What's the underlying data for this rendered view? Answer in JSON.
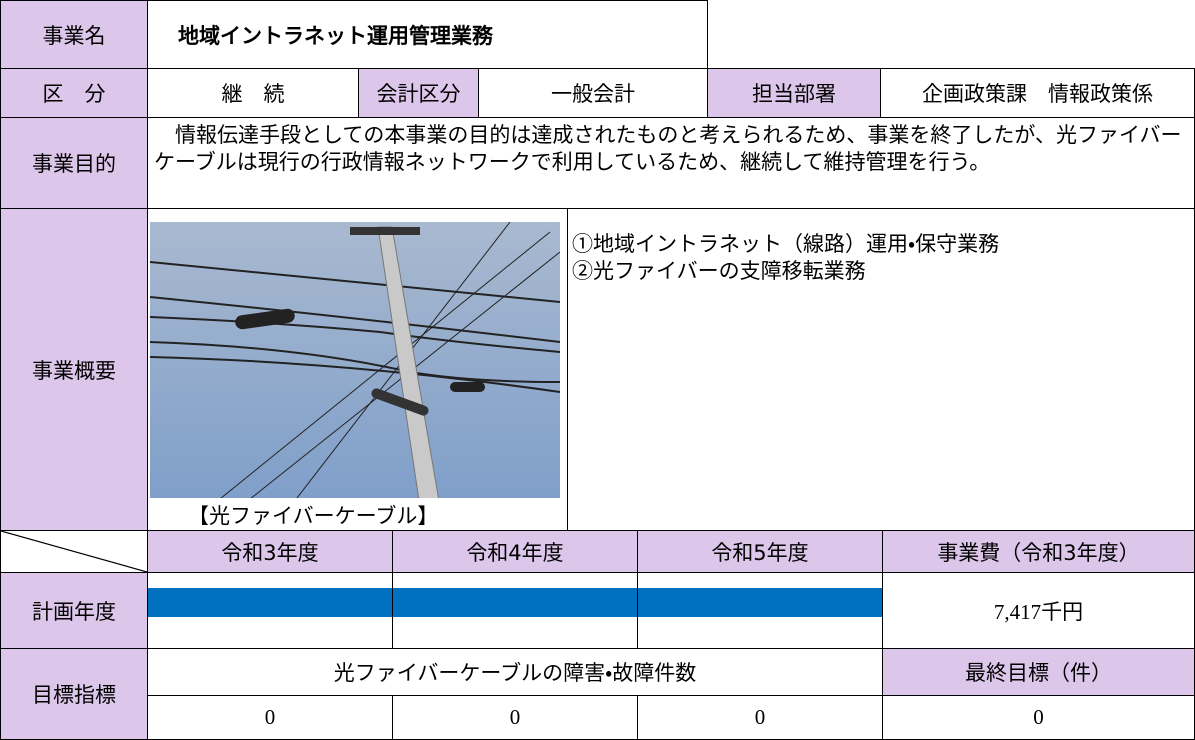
{
  "header": {
    "name_label": "事業名",
    "name": "地域イントラネット運用管理業務"
  },
  "info": {
    "category_label": "区　分",
    "category": "継　続",
    "account_label": "会計区分",
    "account": "一般会計",
    "department_label": "担当部署",
    "department": "企画政策課　情報政策係"
  },
  "purpose": {
    "label": "事業目的",
    "text": "情報伝達手段としての本事業の目的は達成されたものと考えられるため、事業を終了したが、光ファイバーケーブルは現行の行政情報ネットワークで利用しているため、継続して維持管理を行う。"
  },
  "overview": {
    "label": "事業概要",
    "caption": "【光ファイバーケーブル】",
    "items": [
      "①地域イントラネット（線路）運用・保守業務",
      "②光ファイバーの支障移転業務"
    ]
  },
  "schedule": {
    "years": [
      "令和3年度",
      "令和4年度",
      "令和5年度"
    ],
    "cost_label": "事業費（令和3年度）",
    "plan_label": "計画年度",
    "planned": [
      true,
      true,
      true
    ],
    "cost": "7,417千円",
    "bar_color": "#0070c0"
  },
  "indicator": {
    "label": "目標指標",
    "name": "光ファイバーケーブルの障害・故障件数",
    "final_label": "最終目標（件）",
    "values": [
      "0",
      "0",
      "0"
    ],
    "final": "0"
  }
}
